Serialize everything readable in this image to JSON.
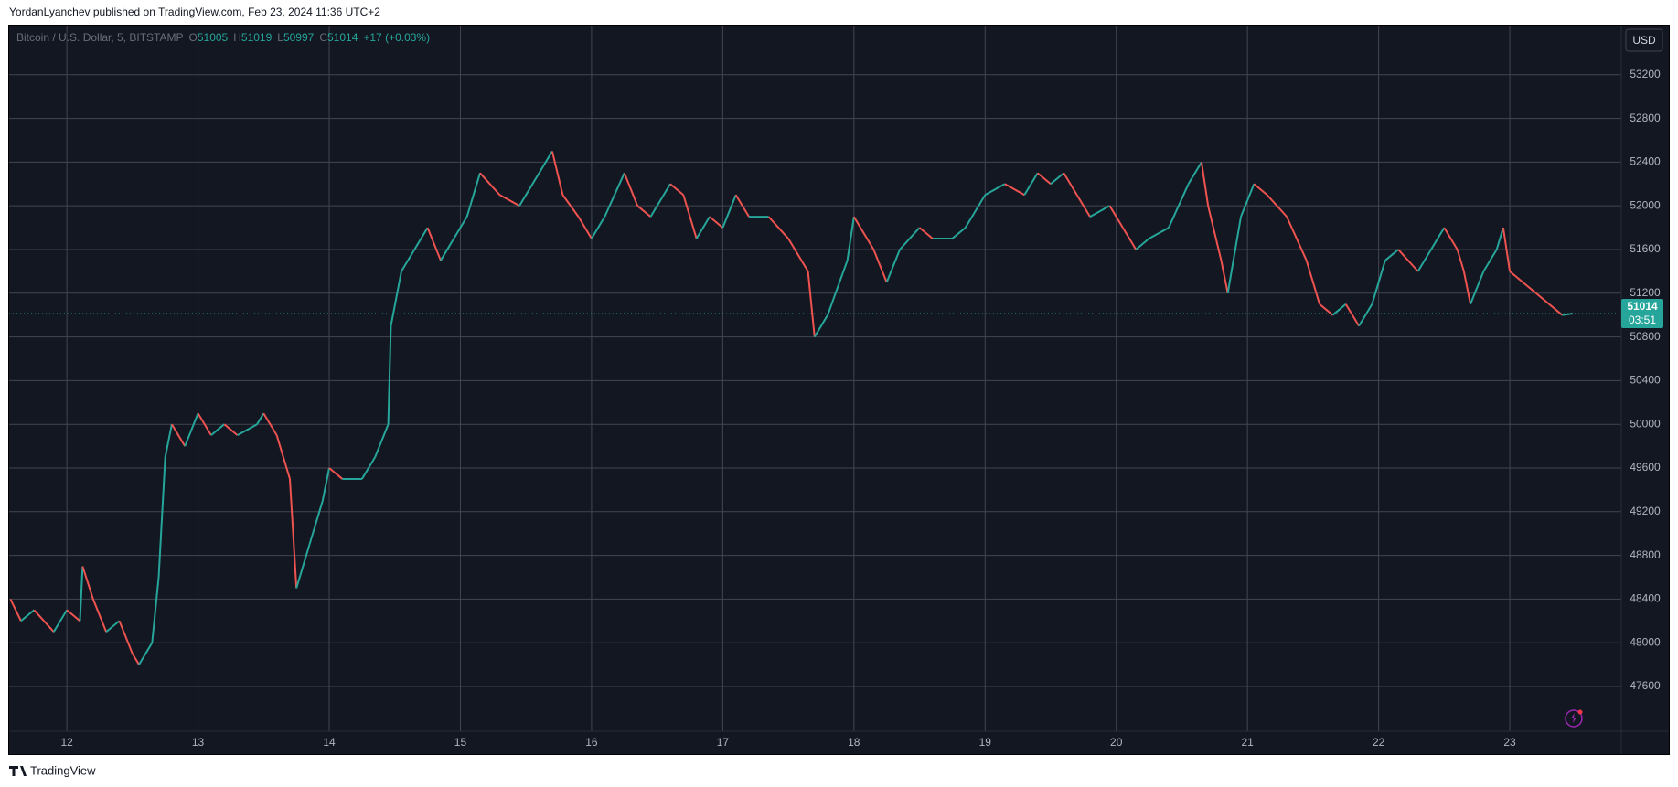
{
  "publisher_line": "YordanLyanchev published on TradingView.com, Feb 23, 2024 11:36 UTC+2",
  "footer_brand": "TradingView",
  "chart_data": {
    "type": "line",
    "symbol": "Bitcoin / U.S. Dollar, 5, BITSTAMP",
    "ohlc": [
      {
        "label": "O",
        "value": 51005
      },
      {
        "label": "H",
        "value": 51019
      },
      {
        "label": "L",
        "value": 50997
      },
      {
        "label": "C",
        "value": 51014
      }
    ],
    "change": "+17 (+0.03%)",
    "currency": "USD",
    "last_price": 51014,
    "countdown": "03:51",
    "up_color": "#26a69a",
    "down_color": "#ef5350",
    "grid": true,
    "x": [
      11.57,
      11.65,
      11.75,
      11.9,
      12.0,
      12.1,
      12.12,
      12.2,
      12.3,
      12.4,
      12.5,
      12.55,
      12.65,
      12.7,
      12.75,
      12.8,
      12.9,
      13.0,
      13.1,
      13.2,
      13.3,
      13.45,
      13.5,
      13.6,
      13.7,
      13.75,
      13.8,
      13.85,
      13.95,
      14.0,
      14.1,
      14.25,
      14.35,
      14.45,
      14.47,
      14.55,
      14.65,
      14.75,
      14.85,
      14.95,
      15.05,
      15.15,
      15.3,
      15.45,
      15.6,
      15.7,
      15.78,
      15.9,
      16.0,
      16.1,
      16.25,
      16.35,
      16.45,
      16.6,
      16.7,
      16.8,
      16.9,
      17.0,
      17.1,
      17.2,
      17.35,
      17.5,
      17.65,
      17.7,
      17.8,
      17.95,
      18.0,
      18.15,
      18.25,
      18.35,
      18.5,
      18.6,
      18.75,
      18.85,
      19.0,
      19.15,
      19.3,
      19.4,
      19.5,
      19.6,
      19.7,
      19.8,
      19.95,
      20.05,
      20.15,
      20.25,
      20.4,
      20.55,
      20.65,
      20.7,
      20.8,
      20.85,
      20.95,
      21.05,
      21.15,
      21.3,
      21.45,
      21.55,
      21.65,
      21.75,
      21.85,
      21.95,
      22.05,
      22.15,
      22.3,
      22.4,
      22.5,
      22.6,
      22.65,
      22.7,
      22.8,
      22.9,
      22.95,
      23.0,
      23.1,
      23.2,
      23.3,
      23.4,
      23.48
    ],
    "values": [
      48400,
      48200,
      48300,
      48100,
      48300,
      48200,
      48700,
      48400,
      48100,
      48200,
      47900,
      47800,
      48000,
      48600,
      49700,
      50000,
      49800,
      50100,
      49900,
      50000,
      49900,
      50000,
      50100,
      49900,
      49500,
      48500,
      48700,
      48900,
      49300,
      49600,
      49500,
      49500,
      49700,
      50000,
      50900,
      51400,
      51600,
      51800,
      51500,
      51700,
      51900,
      52300,
      52100,
      52000,
      52300,
      52500,
      52100,
      51900,
      51700,
      51900,
      52300,
      52000,
      51900,
      52200,
      52100,
      51700,
      51900,
      51800,
      52100,
      51900,
      51900,
      51700,
      51400,
      50800,
      51000,
      51500,
      51900,
      51600,
      51300,
      51600,
      51800,
      51700,
      51700,
      51800,
      52100,
      52200,
      52100,
      52300,
      52200,
      52300,
      52100,
      51900,
      52000,
      51800,
      51600,
      51700,
      51800,
      52200,
      52400,
      52000,
      51500,
      51200,
      51900,
      52200,
      52100,
      51900,
      51500,
      51100,
      51000,
      51100,
      50900,
      51100,
      51500,
      51600,
      51400,
      51600,
      51800,
      51600,
      51400,
      51100,
      51400,
      51600,
      51800,
      51400,
      51300,
      51200,
      51100,
      51000,
      51014
    ],
    "xlim": [
      11.56,
      23.85
    ],
    "xticks": [
      12,
      13,
      14,
      15,
      16,
      17,
      18,
      19,
      20,
      21,
      22,
      23
    ],
    "ylim": [
      47190,
      53650
    ],
    "yticks": [
      47600,
      48000,
      48400,
      48800,
      49200,
      49600,
      50000,
      50400,
      50800,
      51200,
      51600,
      52000,
      52400,
      52800,
      53200
    ]
  }
}
